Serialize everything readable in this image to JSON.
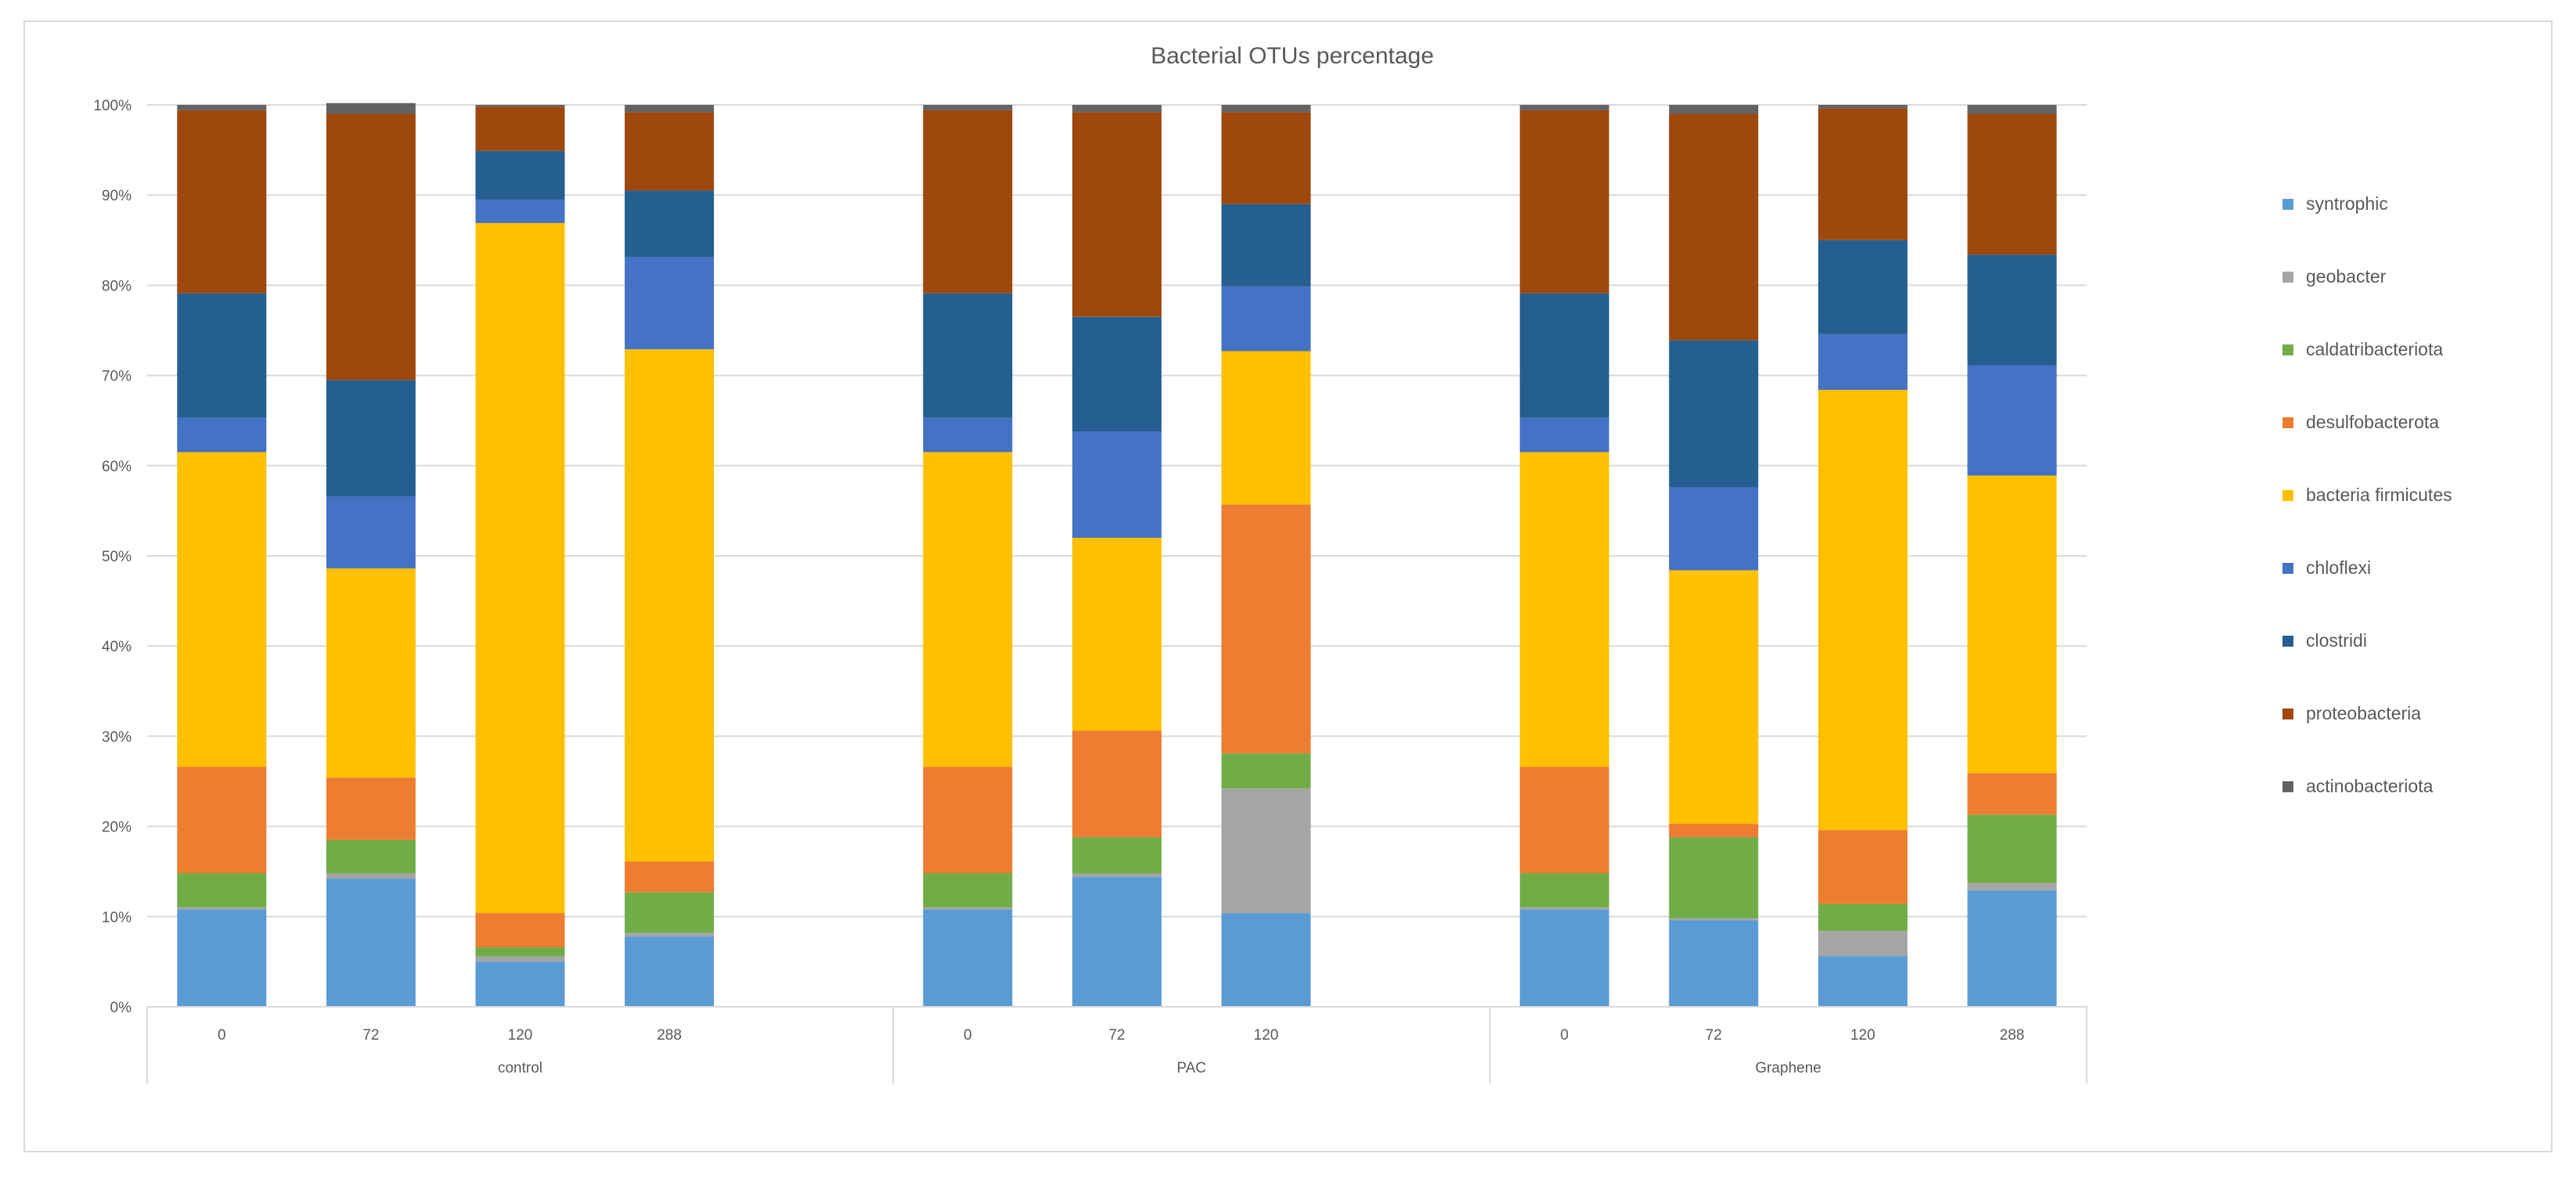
{
  "chart_data": {
    "type": "bar",
    "stacked": "percent",
    "title": "Bacterial OTUs percentage",
    "xlabel": "",
    "ylabel": "",
    "ylim": [
      0,
      100
    ],
    "yticks": [
      "0%",
      "10%",
      "20%",
      "30%",
      "40%",
      "50%",
      "60%",
      "70%",
      "80%",
      "90%",
      "100%"
    ],
    "grid": true,
    "legend_position": "right",
    "groups": [
      {
        "name": "control",
        "categories": [
          "0",
          "72",
          "120",
          "288"
        ]
      },
      {
        "name": "PAC",
        "categories": [
          "0",
          "72",
          "120"
        ]
      },
      {
        "name": "Graphene",
        "categories": [
          "0",
          "72",
          "120",
          "288"
        ]
      }
    ],
    "series": [
      {
        "name": "syntrophic",
        "color": "#5b9bd5",
        "values": [
          10.8,
          14.2,
          5.0,
          7.8,
          10.8,
          14.4,
          10.4,
          10.8,
          9.6,
          5.6,
          12.9
        ]
      },
      {
        "name": "geobacter",
        "color": "#a5a5a5",
        "values": [
          0.2,
          0.6,
          0.6,
          0.4,
          0.2,
          0.4,
          13.8,
          0.2,
          0.2,
          2.8,
          0.8
        ]
      },
      {
        "name": "caldatribacteriota",
        "color": "#70ad47",
        "values": [
          3.8,
          3.7,
          1.0,
          4.5,
          3.8,
          4.0,
          3.9,
          3.8,
          9.0,
          3.0,
          7.6
        ]
      },
      {
        "name": "desulfobacterota",
        "color": "#ed7d31",
        "values": [
          11.8,
          6.9,
          3.8,
          3.4,
          11.8,
          11.8,
          27.6,
          11.8,
          1.5,
          8.2,
          4.6
        ]
      },
      {
        "name": "bacteria firmicutes",
        "color": "#ffc000",
        "values": [
          34.9,
          23.2,
          76.5,
          56.8,
          34.9,
          21.4,
          17.0,
          34.9,
          28.1,
          48.8,
          33.0
        ]
      },
      {
        "name": "chloflexi",
        "color": "#4472c4",
        "values": [
          3.8,
          8.0,
          2.6,
          10.2,
          3.8,
          11.8,
          7.2,
          3.8,
          9.2,
          6.2,
          12.2
        ]
      },
      {
        "name": "clostridi",
        "color": "#255e91",
        "values": [
          13.8,
          12.9,
          5.4,
          7.4,
          13.8,
          12.7,
          9.1,
          13.8,
          16.3,
          10.4,
          12.3
        ]
      },
      {
        "name": "proteobacteria",
        "color": "#9e480e",
        "values": [
          20.3,
          29.5,
          4.9,
          8.7,
          20.3,
          22.7,
          10.2,
          20.3,
          25.1,
          14.6,
          15.6
        ]
      },
      {
        "name": "actinobacteriota",
        "color": "#636363",
        "values": [
          0.6,
          1.2,
          0.2,
          0.8,
          0.6,
          0.8,
          0.8,
          0.6,
          1.0,
          0.4,
          1.0
        ]
      }
    ]
  }
}
